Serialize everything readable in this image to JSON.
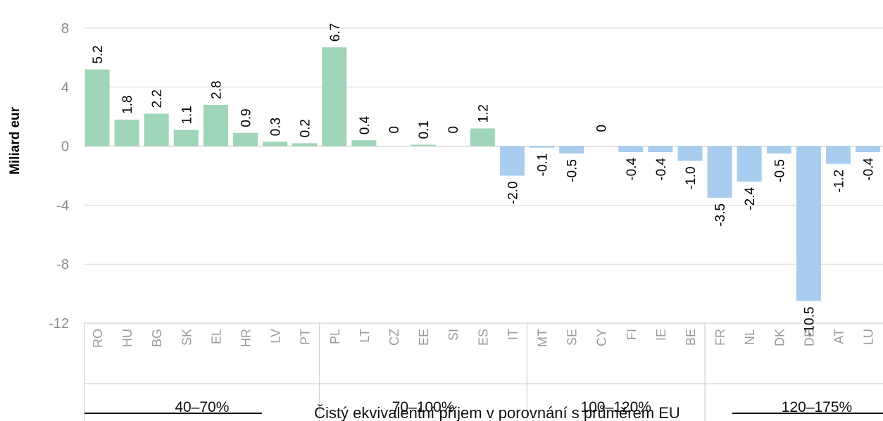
{
  "chart_data": {
    "type": "bar",
    "ylabel": "Miliard eur",
    "xlabel": "Čistý ekvivalentní příjem v porovnání s průměrem EU",
    "ylim": [
      -12,
      8
    ],
    "yticks": [
      8,
      4,
      0,
      -4,
      -8,
      -12
    ],
    "ytick_labels": [
      "8",
      "4",
      "0",
      "-4",
      "-8",
      "-12"
    ],
    "grid": true,
    "categories": [
      "RO",
      "HU",
      "BG",
      "SK",
      "EL",
      "HR",
      "LV",
      "PT",
      "PL",
      "LT",
      "CZ",
      "EE",
      "SI",
      "ES",
      "IT",
      "MT",
      "SE",
      "CY",
      "FI",
      "IE",
      "BE",
      "FR",
      "NL",
      "DK",
      "DE",
      "AT",
      "LU"
    ],
    "values": [
      5.2,
      1.8,
      2.2,
      1.1,
      2.8,
      0.9,
      0.3,
      0.2,
      6.7,
      0.4,
      0,
      0.1,
      0,
      1.2,
      -2.0,
      -0.1,
      -0.5,
      0,
      -0.4,
      -0.4,
      -1.0,
      -3.5,
      -2.4,
      -0.5,
      -10.5,
      -1.2,
      -0.4
    ],
    "data_labels": [
      "5.2",
      "1.8",
      "2.2",
      "1.1",
      "2.8",
      "0.9",
      "0.3",
      "0.2",
      "6.7",
      "0.4",
      "0",
      "0.1",
      "0",
      "1.2",
      "-2.0",
      "-0.1",
      "-0.5",
      "0",
      "-0.4",
      "-0.4",
      "-1.0",
      "-3.5",
      "-2.4",
      "-0.5",
      "-10.5",
      "-1.2",
      "-0.4"
    ],
    "groups": [
      {
        "label": "40–70%",
        "count": 8
      },
      {
        "label": "70–100%",
        "count": 7
      },
      {
        "label": "100–120%",
        "count": 6
      },
      {
        "label": "120–175%",
        "count": 6
      }
    ],
    "colors": {
      "positive": "#9fd5b8",
      "negative": "#a9cdef",
      "grid": "#d9d9d9",
      "axis": "#c8c8c8"
    }
  }
}
